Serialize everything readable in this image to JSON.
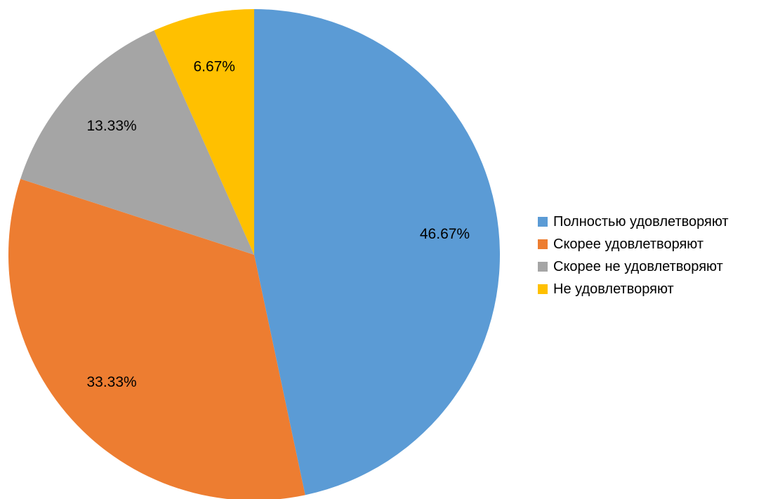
{
  "chart_data": {
    "type": "pie",
    "categories": [
      "Полностью удовлетворяют",
      "Скорее удовлетворяют",
      "Скорее не удовлетворяют",
      "Не удовлетворяют"
    ],
    "values": [
      46.67,
      33.33,
      13.33,
      6.67
    ],
    "data_labels": [
      "46.67%",
      "33.33%",
      "13.33%",
      "6.67%"
    ],
    "colors": [
      "#5b9bd5",
      "#ed7d31",
      "#a5a5a5",
      "#ffc000"
    ],
    "start_angle_deg": 0,
    "direction": "clockwise",
    "legend_position": "right",
    "title": ""
  }
}
